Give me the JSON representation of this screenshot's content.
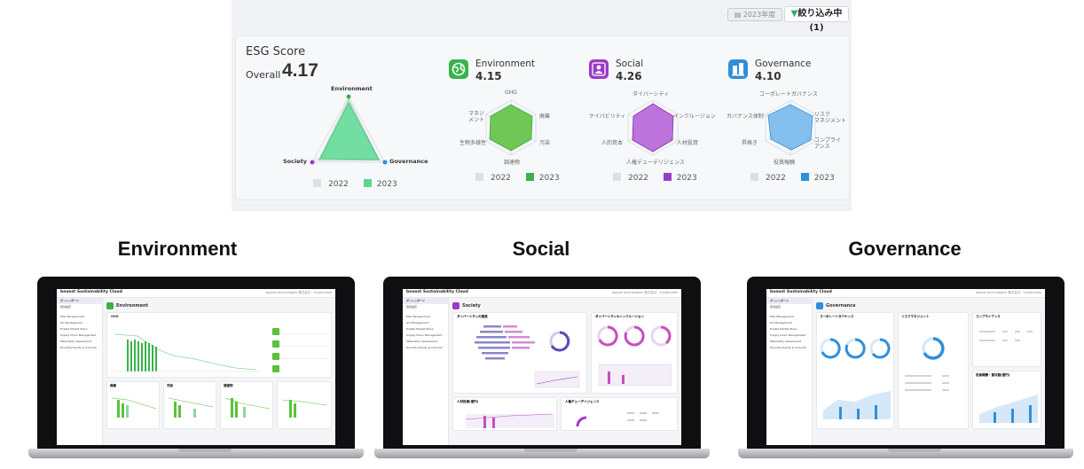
{
  "esg": {
    "fiscal_year": "2023年度",
    "filter_label": "絞り込み中(1)",
    "title": "ESG Score",
    "overall_label": "Overall",
    "overall_value": "4.17",
    "overall_axes": [
      "Environment",
      "Governance",
      "Society"
    ],
    "legend": [
      "2022",
      "2023"
    ],
    "categories": [
      {
        "name": "Environment",
        "score": "4.15",
        "color": "#37b34a",
        "axes": [
          "GHG",
          "廃棄",
          "汚染",
          "調達物",
          "生物多様性",
          "マネジ\nメント"
        ]
      },
      {
        "name": "Social",
        "score": "4.26",
        "color": "#9b3bc6",
        "axes": [
          "ダイバーシティ",
          "インクルージョン",
          "人材投資",
          "人権デューデリジェンス",
          "人的資本",
          "ケイパビリティ"
        ]
      },
      {
        "name": "Governance",
        "score": "4.10",
        "color": "#2f8fdc",
        "axes": [
          "コーポレートガバナンス",
          "リスク\nマネジメント",
          "コンプライ\nアンス",
          "役員報酬",
          "昇格き",
          "ガバナンス体制"
        ]
      }
    ],
    "overall_color": "#4fd38b"
  },
  "screens": [
    {
      "heading": "Environment",
      "page_title": "Environment",
      "accent": "#37b34a",
      "brand": "booost Sustainability Cloud",
      "company": "booost technologies 株式会社 · Sustainable",
      "sidebar": [
        "ダッシュボード",
        "環境設定",
        "ESG Management",
        "GX Management",
        "Enable Market Place",
        "Supply Chain Management",
        "Materiality Assessment",
        "Diversity Equity & Inclusion"
      ],
      "panels": [
        "GHG",
        "廃棄",
        "汚染",
        "調達物"
      ]
    },
    {
      "heading": "Social",
      "page_title": "Society",
      "accent": "#9b3bc6",
      "brand": "booost Sustainability Cloud",
      "company": "booost technologies 株式会社 · Sustainable",
      "sidebar": [
        "ダッシュボード",
        "環境設定",
        "ESG Management",
        "GX Management",
        "Enable Market Place",
        "Supply Chain Management",
        "Materiality Assessment",
        "Diversity Equity & Inclusion"
      ],
      "panels": [
        "ダイバーシティの推進",
        "ダイバーシティ&インクルージョン",
        "人材投資(億円)",
        "人権デューデリジェンス"
      ]
    },
    {
      "heading": "Governance",
      "page_title": "Governance",
      "accent": "#2f8fdc",
      "brand": "booost Sustainability Cloud",
      "company": "booost technologies 株式会社 · Sustainable",
      "sidebar": [
        "ダッシュボード",
        "環境設定",
        "ESG Management",
        "GX Management",
        "Enable Market Place",
        "Supply Chain Management",
        "Materiality Assessment",
        "Diversity Equity & Inclusion"
      ],
      "panels": [
        "コーポレートガバナンス",
        "リスクマネジメント",
        "コンプライアンス",
        "役員報酬・賞与額(億円)"
      ]
    }
  ]
}
